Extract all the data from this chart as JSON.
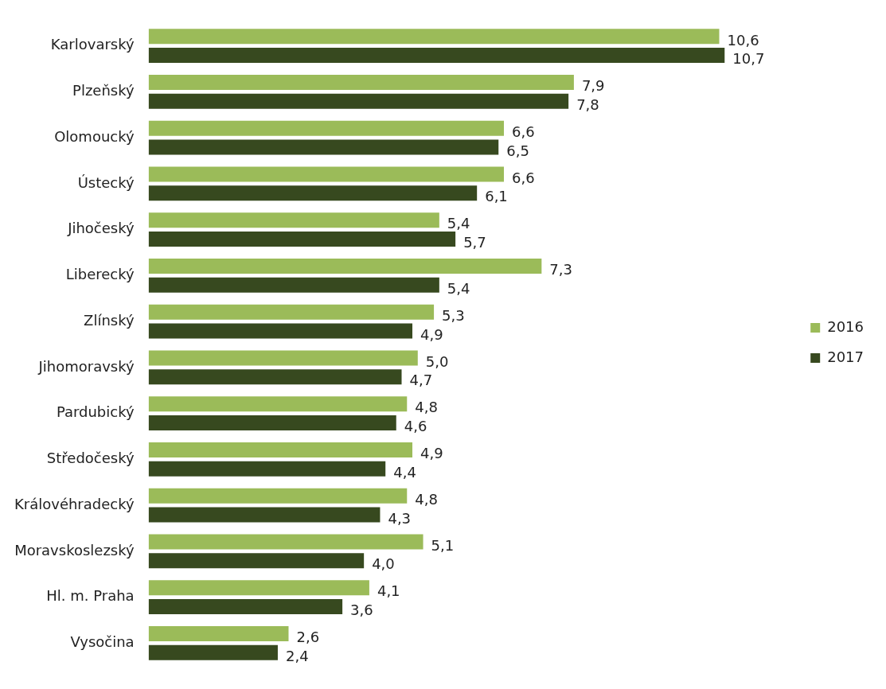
{
  "chart_data": {
    "type": "bar",
    "orientation": "horizontal",
    "categories": [
      "Karlovarský",
      "Plzeňský",
      "Olomoucký",
      "Ústecký",
      "Jihočeský",
      "Liberecký",
      "Zlínský",
      "Jihomoravský",
      "Pardubický",
      "Středočeský",
      "Královéhradecký",
      "Moravskoslezský",
      "Hl. m. Praha",
      "Vysočina"
    ],
    "series": [
      {
        "name": "2016",
        "color": "#9bbb59",
        "values": [
          10.6,
          7.9,
          6.6,
          6.6,
          5.4,
          7.3,
          5.3,
          5.0,
          4.8,
          4.9,
          4.8,
          5.1,
          4.1,
          2.6
        ],
        "value_labels": [
          "10,6",
          "7,9",
          "6,6",
          "6,6",
          "5,4",
          "7,3",
          "5,3",
          "5,0",
          "4,8",
          "4,9",
          "4,8",
          "5,1",
          "4,1",
          "2,6"
        ]
      },
      {
        "name": "2017",
        "color": "#37491f",
        "values": [
          10.7,
          7.8,
          6.5,
          6.1,
          5.7,
          5.4,
          4.9,
          4.7,
          4.6,
          4.4,
          4.3,
          4.0,
          3.6,
          2.4
        ],
        "value_labels": [
          "10,7",
          "7,8",
          "6,5",
          "6,1",
          "5,7",
          "5,4",
          "4,9",
          "4,7",
          "4,6",
          "4,4",
          "4,3",
          "4,0",
          "3,6",
          "2,4"
        ]
      }
    ],
    "legend": "right",
    "grid": false
  }
}
